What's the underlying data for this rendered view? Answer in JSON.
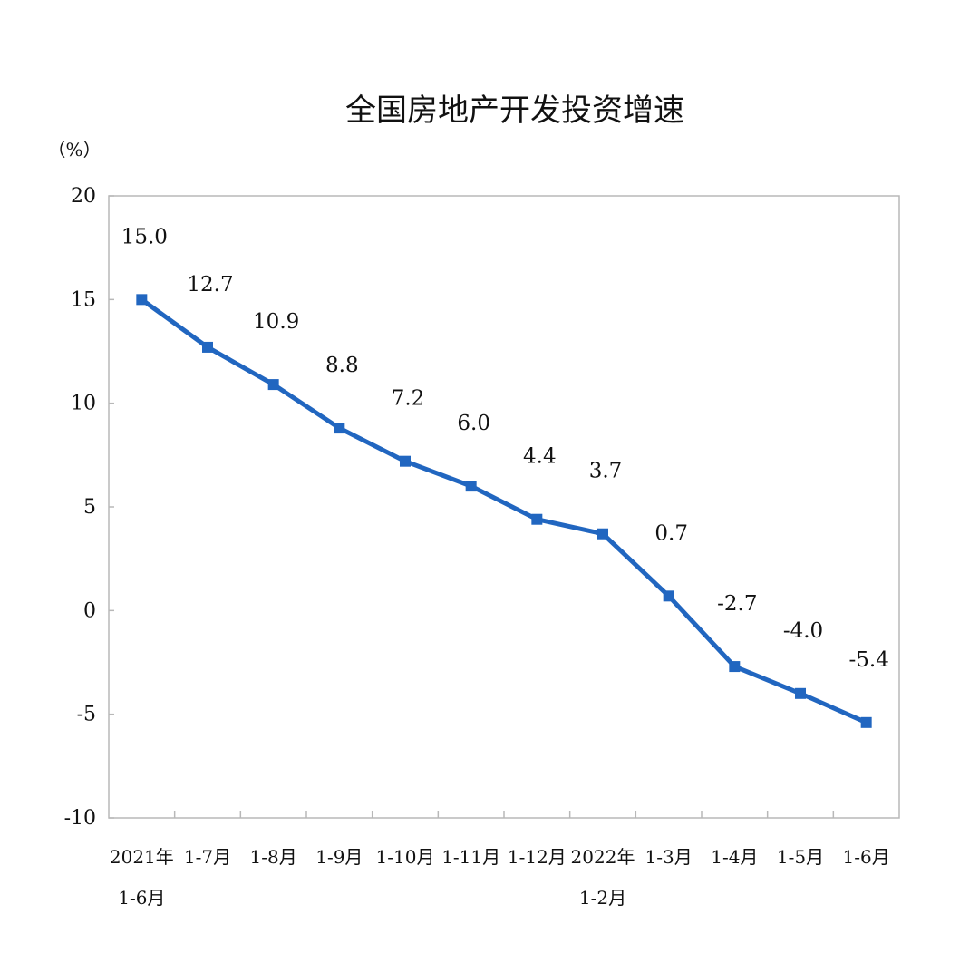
{
  "chart_data": {
    "type": "line",
    "title": "全国房地产开发投资增速",
    "unit_label": "（%）",
    "categories": [
      [
        "2021年",
        "1-6月"
      ],
      [
        "1-7月"
      ],
      [
        "1-8月"
      ],
      [
        "1-9月"
      ],
      [
        "1-10月"
      ],
      [
        "1-11月"
      ],
      [
        "1-12月"
      ],
      [
        "2022年",
        "1-2月"
      ],
      [
        "1-3月"
      ],
      [
        "1-4月"
      ],
      [
        "1-5月"
      ],
      [
        "1-6月"
      ]
    ],
    "series": [
      {
        "values": [
          15.0,
          12.7,
          10.9,
          8.8,
          7.2,
          6.0,
          4.4,
          3.7,
          0.7,
          -2.7,
          -4.0,
          -5.4
        ],
        "labels": [
          "15.0",
          "12.7",
          "10.9",
          "8.8",
          "7.2",
          "6.0",
          "4.4",
          "3.7",
          "0.7",
          "-2.7",
          "-4.0",
          "-5.4"
        ],
        "color": "#2166c0"
      }
    ],
    "ylim": [
      -10,
      20
    ],
    "yticks": [
      20,
      15,
      10,
      5,
      0,
      -5,
      -10
    ],
    "grid": false,
    "legend": "none"
  }
}
